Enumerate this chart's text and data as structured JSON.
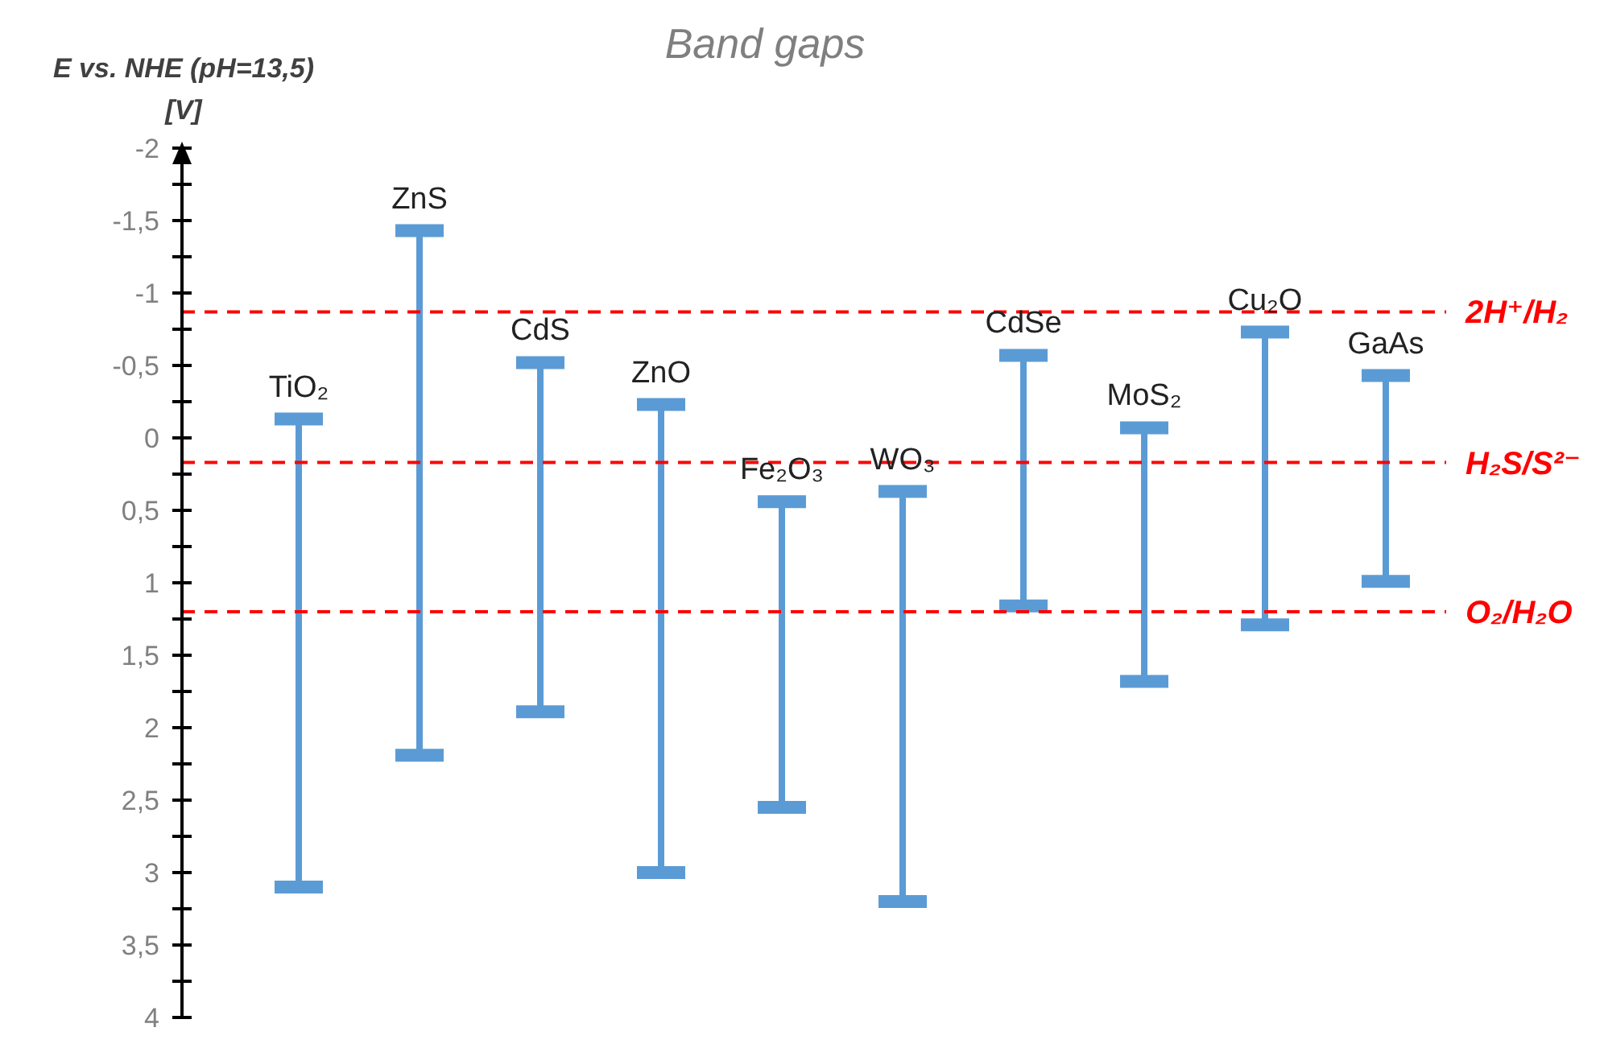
{
  "chart_data": {
    "type": "bar",
    "title": "Band gaps",
    "ylabel": "E vs. NHE (pH=13,5) [V]",
    "categories": [
      "TiO₂",
      "ZnS",
      "CdS",
      "ZnO",
      "Fe₂O₃",
      "WO₃",
      "CdSe",
      "MoS₂",
      "Cu₂O",
      "GaAs"
    ],
    "base": [
      -0.13,
      -1.43,
      -0.52,
      -0.23,
      0.44,
      0.37,
      -0.57,
      -0.07,
      -0.73,
      -0.43
    ],
    "values": [
      3.23,
      3.62,
      2.41,
      3.23,
      2.11,
      2.83,
      1.73,
      1.75,
      2.02,
      1.42
    ],
    "color": "#5b9bd5",
    "ylim": [
      4,
      -2
    ],
    "yticks": [
      {
        "value": -2,
        "label": "-2"
      },
      {
        "value": -1.75,
        "label": null
      },
      {
        "value": -1.5,
        "label": "-1,5"
      },
      {
        "value": -1.25,
        "label": null
      },
      {
        "value": -1,
        "label": "-1"
      },
      {
        "value": -0.75,
        "label": null
      },
      {
        "value": -0.5,
        "label": "-0,5"
      },
      {
        "value": -0.25,
        "label": null
      },
      {
        "value": 0,
        "label": "0"
      },
      {
        "value": 0.25,
        "label": null
      },
      {
        "value": 0.5,
        "label": "0,5"
      },
      {
        "value": 0.75,
        "label": null
      },
      {
        "value": 1,
        "label": "1"
      },
      {
        "value": 1.25,
        "label": null
      },
      {
        "value": 1.5,
        "label": "1,5"
      },
      {
        "value": 1.75,
        "label": null
      },
      {
        "value": 2,
        "label": "2"
      },
      {
        "value": 2.25,
        "label": null
      },
      {
        "value": 2.5,
        "label": "2,5"
      },
      {
        "value": 2.75,
        "label": null
      },
      {
        "value": 3,
        "label": "3"
      },
      {
        "value": 3.25,
        "label": null
      },
      {
        "value": 3.5,
        "label": "3,5"
      },
      {
        "value": 3.75,
        "label": null
      },
      {
        "value": 4,
        "label": "4"
      }
    ],
    "ref_lines": [
      {
        "axis": "y",
        "value": -0.87,
        "label": "2H⁺/H₂",
        "color": "#ff0000",
        "line_style": "dashed"
      },
      {
        "axis": "y",
        "value": 0.17,
        "label": "H₂S/S²⁻",
        "color": "#ff0000",
        "line_style": "dashed"
      },
      {
        "axis": "y",
        "value": 1.2,
        "label": "O₂/H₂O",
        "color": "#ff0000",
        "line_style": "dashed"
      }
    ],
    "grid": false,
    "legend": false
  }
}
